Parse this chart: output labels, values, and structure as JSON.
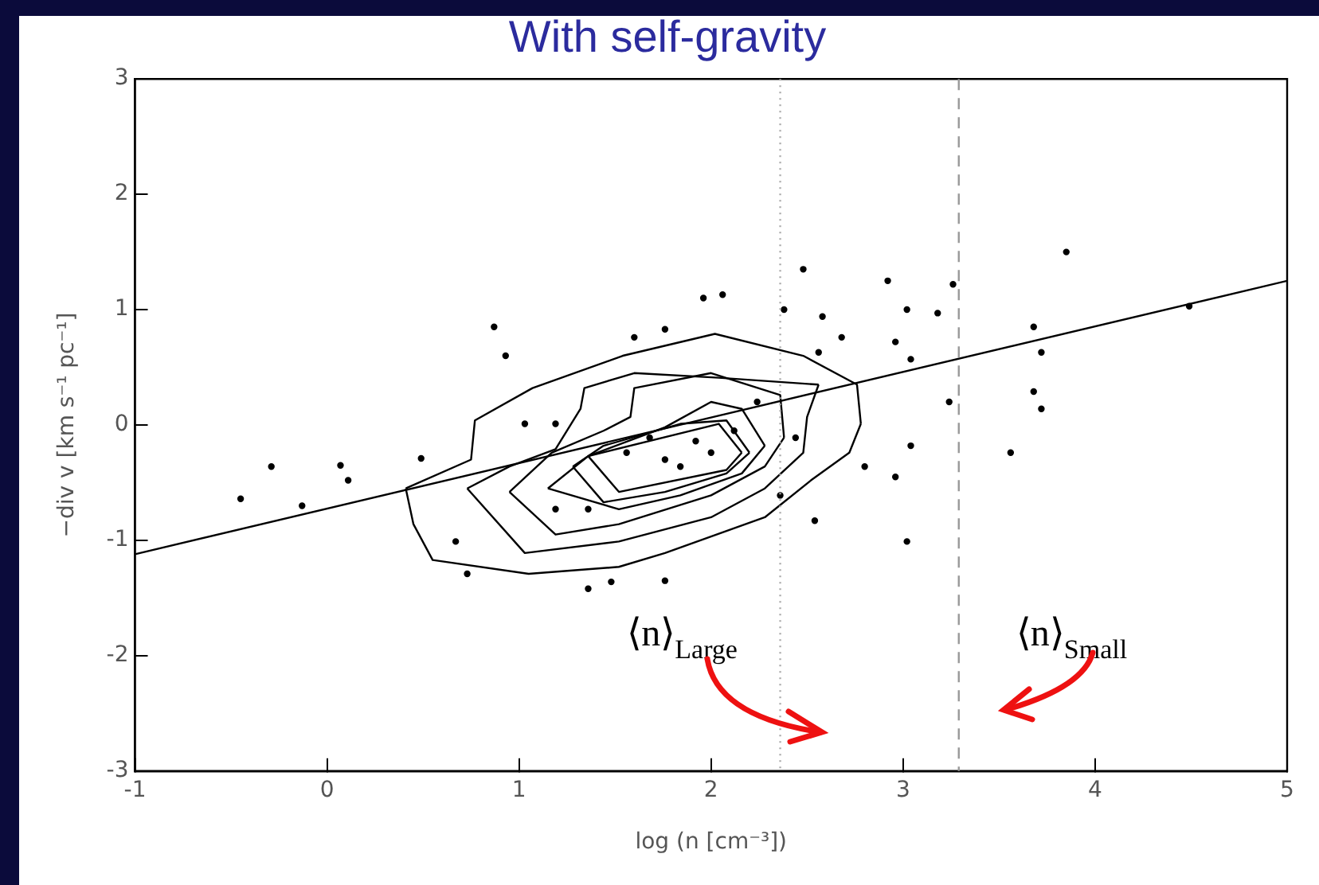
{
  "chart_data": {
    "type": "scatter",
    "title": "With self-gravity",
    "xlabel": "log (n [cm⁻³])",
    "ylabel": "−div v [km s⁻¹ pc⁻¹]",
    "xlim": [
      -1,
      5
    ],
    "ylim": [
      -3,
      3
    ],
    "xticks": [
      -1,
      0,
      1,
      2,
      3,
      4,
      5
    ],
    "yticks": [
      -3,
      -2,
      -1,
      0,
      1,
      2,
      3
    ],
    "grid": false,
    "legend": false,
    "series": [
      {
        "type": "scatter",
        "marker": "circle",
        "color": "#000000",
        "x": [
          -0.45,
          -0.29,
          -0.13,
          0.07,
          0.11,
          0.49,
          0.87,
          0.93,
          0.67,
          0.73,
          1.96,
          2.06,
          1.76,
          1.6,
          2.48,
          2.38,
          2.58,
          2.92,
          3.26,
          3.02,
          3.18,
          2.96,
          3.04,
          3.24,
          2.96,
          3.02,
          2.54,
          3.85,
          3.68,
          3.72,
          3.68,
          3.72,
          3.56,
          4.49,
          1.36,
          1.48,
          1.76,
          2.8,
          3.04,
          2.44,
          1.76,
          1.84,
          1.56,
          2.0,
          2.24,
          2.56,
          2.68,
          1.19,
          1.03,
          1.36,
          1.68,
          1.92,
          2.12,
          2.36,
          1.19
        ],
        "values": [
          -0.64,
          -0.36,
          -0.7,
          -0.35,
          -0.48,
          -0.29,
          0.85,
          0.6,
          -1.01,
          -1.29,
          1.1,
          1.13,
          0.83,
          0.76,
          1.35,
          1.0,
          0.94,
          1.25,
          1.22,
          1.0,
          0.97,
          0.72,
          0.57,
          0.2,
          -0.45,
          -1.01,
          -0.83,
          1.5,
          0.85,
          0.63,
          0.29,
          0.14,
          -0.24,
          1.03,
          -1.42,
          -1.36,
          -1.35,
          -0.36,
          -0.18,
          -0.11,
          -0.3,
          -0.36,
          -0.24,
          -0.24,
          0.2,
          0.63,
          0.76,
          0.01,
          0.01,
          -0.73,
          -0.11,
          -0.14,
          -0.05,
          -0.61,
          -0.73
        ]
      },
      {
        "type": "line",
        "marker": "none",
        "color": "#000000",
        "x": [
          -1,
          5
        ],
        "values": [
          -1.12,
          1.25
        ]
      },
      {
        "type": "line",
        "marker": "none",
        "color": "#000000",
        "x": [
          0.41,
          0.75,
          0.77,
          1.07,
          1.54,
          2.02,
          2.48,
          2.76,
          2.78
        ],
        "values": [
          -0.55,
          -0.3,
          0.04,
          0.32,
          0.6,
          0.79,
          0.6,
          0.35,
          0.01
        ]
      },
      {
        "type": "line",
        "marker": "none",
        "color": "#000000",
        "x": [
          0.41,
          0.45,
          0.55,
          1.05,
          1.52,
          1.76,
          2.28,
          2.52,
          2.72,
          2.78
        ],
        "values": [
          -0.55,
          -0.86,
          -1.17,
          -1.29,
          -1.23,
          -1.11,
          -0.8,
          -0.48,
          -0.24,
          0.01
        ]
      },
      {
        "type": "line",
        "marker": "none",
        "color": "#000000",
        "x": [
          0.73,
          0.95,
          1.19,
          1.32,
          1.34,
          1.6,
          2.04,
          2.56
        ],
        "values": [
          -0.55,
          -0.36,
          -0.21,
          0.14,
          0.32,
          0.45,
          0.41,
          0.35
        ]
      },
      {
        "type": "line",
        "marker": "none",
        "color": "#000000",
        "x": [
          0.73,
          1.03,
          1.52,
          2.0,
          2.28,
          2.48,
          2.5,
          2.56
        ],
        "values": [
          -0.55,
          -1.11,
          -1.01,
          -0.8,
          -0.55,
          -0.24,
          0.07,
          0.35
        ]
      },
      {
        "type": "line",
        "marker": "none",
        "color": "#000000",
        "x": [
          0.95,
          1.17,
          1.44,
          1.58,
          1.6,
          2.0,
          2.36,
          2.38
        ],
        "values": [
          -0.58,
          -0.24,
          -0.05,
          0.07,
          0.32,
          0.45,
          0.26,
          -0.11
        ]
      },
      {
        "type": "line",
        "marker": "none",
        "color": "#000000",
        "x": [
          0.95,
          1.19,
          1.52,
          2.0,
          2.28,
          2.38
        ],
        "values": [
          -0.58,
          -0.95,
          -0.86,
          -0.61,
          -0.36,
          -0.11
        ]
      },
      {
        "type": "line",
        "marker": "none",
        "color": "#000000",
        "x": [
          1.15,
          1.36,
          1.76,
          2.0,
          2.16,
          2.28
        ],
        "values": [
          -0.55,
          -0.27,
          -0.02,
          0.2,
          0.14,
          -0.18
        ]
      },
      {
        "type": "line",
        "marker": "none",
        "color": "#000000",
        "x": [
          1.15,
          1.52,
          1.84,
          2.16,
          2.28
        ],
        "values": [
          -0.55,
          -0.73,
          -0.61,
          -0.42,
          -0.18
        ]
      },
      {
        "type": "line",
        "marker": "none",
        "color": "#000000",
        "x": [
          1.28,
          1.44,
          1.84,
          2.08,
          2.2
        ],
        "values": [
          -0.36,
          -0.18,
          0.01,
          0.04,
          -0.24
        ]
      },
      {
        "type": "line",
        "marker": "none",
        "color": "#000000",
        "x": [
          1.28,
          1.44,
          1.76,
          2.08,
          2.2
        ],
        "values": [
          -0.36,
          -0.67,
          -0.58,
          -0.42,
          -0.24
        ]
      },
      {
        "type": "line",
        "marker": "none",
        "color": "#000000",
        "x": [
          1.36,
          2.04,
          2.16
        ],
        "values": [
          -0.27,
          0.01,
          -0.24
        ]
      },
      {
        "type": "line",
        "marker": "none",
        "color": "#000000",
        "x": [
          1.36,
          1.52,
          2.08,
          2.16
        ],
        "values": [
          -0.27,
          -0.58,
          -0.39,
          -0.24
        ]
      }
    ],
    "ref_lines": [
      {
        "axis": "x",
        "value": 2.36,
        "color": "#aaaaaa",
        "line_style": "dotted"
      },
      {
        "axis": "x",
        "value": 3.29,
        "color": "#999999",
        "line_style": "dashed"
      }
    ],
    "annotations": [
      "⟨n⟩$_{Large}$",
      "⟨n⟩$_{Small}$"
    ]
  }
}
